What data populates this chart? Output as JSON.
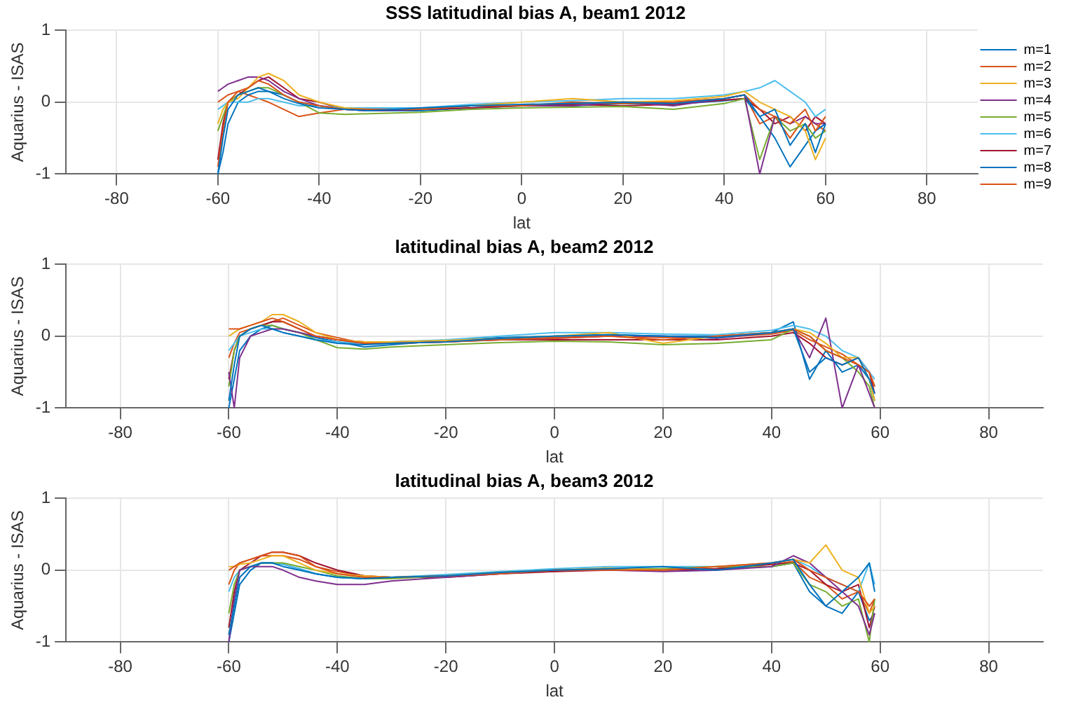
{
  "chart_data": [
    {
      "type": "line",
      "title": "SSS latitudinal bias A, beam1 2012",
      "xlabel": "lat",
      "ylabel": "Aquarius - ISAS",
      "xlim": [
        -90,
        90
      ],
      "xticks": [
        -80,
        -60,
        -40,
        -20,
        0,
        20,
        40,
        60,
        80
      ],
      "ylim": [
        -1,
        1
      ],
      "yticks": [
        -1,
        0,
        1
      ],
      "grid": true,
      "legend": "right",
      "x": [
        -60,
        -59,
        -58,
        -56,
        -54,
        -52,
        -50,
        -47,
        -44,
        -40,
        -35,
        -30,
        -20,
        -10,
        0,
        10,
        20,
        30,
        40,
        44,
        47,
        50,
        53,
        56,
        58,
        60
      ],
      "series": [
        {
          "name": "m=1",
          "color": "#0072bd",
          "values": [
            -1,
            -0.5,
            -0.1,
            0.1,
            0.15,
            0.2,
            0.15,
            0.05,
            -0.02,
            -0.08,
            -0.1,
            -0.12,
            -0.08,
            -0.05,
            -0.03,
            -0.02,
            0,
            -0.02,
            0.05,
            0.1,
            -0.2,
            -0.1,
            -0.6,
            -0.3,
            -0.7,
            -0.3
          ]
        },
        {
          "name": "m=2",
          "color": "#d95319",
          "values": [
            -0.9,
            -0.4,
            0,
            0.15,
            0.2,
            0.3,
            0.25,
            0.1,
            0,
            -0.05,
            -0.1,
            -0.1,
            -0.1,
            -0.05,
            -0.05,
            0,
            -0.02,
            0,
            0.05,
            0.1,
            -0.1,
            -0.2,
            -0.3,
            -0.1,
            -0.4,
            -0.2
          ]
        },
        {
          "name": "m=3",
          "color": "#edb120",
          "values": [
            -0.3,
            -0.1,
            0,
            0.05,
            0.2,
            0.35,
            0.4,
            0.3,
            0.1,
            0,
            -0.08,
            -0.1,
            -0.1,
            -0.05,
            0,
            0.05,
            0,
            0.02,
            0.08,
            0.15,
            0,
            -0.1,
            -0.2,
            -0.4,
            -0.8,
            -0.5
          ]
        },
        {
          "name": "m=4",
          "color": "#7e2f8e",
          "values": [
            0.15,
            0.2,
            0.25,
            0.3,
            0.35,
            0.35,
            0.3,
            0.15,
            0.05,
            -0.05,
            -0.1,
            -0.12,
            -0.1,
            -0.05,
            -0.05,
            -0.05,
            0,
            -0.05,
            0.05,
            0.1,
            -1,
            -0.2,
            -0.3,
            -0.2,
            -0.3,
            -0.3
          ]
        },
        {
          "name": "m=5",
          "color": "#77ac30",
          "values": [
            -0.4,
            -0.2,
            0,
            0.1,
            0.15,
            0.2,
            0.2,
            0.1,
            0,
            -0.15,
            -0.17,
            -0.16,
            -0.14,
            -0.1,
            -0.08,
            -0.07,
            -0.06,
            -0.1,
            -0.02,
            0.05,
            -0.8,
            -0.2,
            -0.4,
            -0.3,
            -0.5,
            -0.4
          ]
        },
        {
          "name": "m=6",
          "color": "#4dbeee",
          "values": [
            -0.1,
            -0.05,
            0,
            0,
            0,
            0.05,
            0.05,
            0,
            -0.05,
            -0.05,
            -0.08,
            -0.08,
            -0.08,
            -0.03,
            0,
            0.02,
            0.05,
            0.05,
            0.1,
            0.15,
            0.2,
            0.3,
            0.15,
            0,
            -0.2,
            -0.1
          ]
        },
        {
          "name": "m=7",
          "color": "#a2142f",
          "values": [
            -0.8,
            -0.3,
            0,
            0.1,
            0.2,
            0.3,
            0.35,
            0.2,
            0.05,
            0,
            -0.1,
            -0.12,
            -0.1,
            -0.08,
            -0.05,
            -0.03,
            -0.05,
            -0.03,
            0.03,
            0.05,
            -0.1,
            -0.3,
            -0.2,
            -0.4,
            -0.2,
            -0.3
          ]
        },
        {
          "name": "m=8",
          "color": "#0072bd",
          "values": [
            -1,
            -0.7,
            -0.3,
            0,
            0.1,
            0.15,
            0.15,
            0.1,
            0,
            -0.05,
            -0.1,
            -0.12,
            -0.12,
            -0.08,
            -0.05,
            -0.05,
            -0.02,
            -0.03,
            0.02,
            0.05,
            -0.2,
            -0.5,
            -0.9,
            -0.6,
            -0.4,
            -0.3
          ]
        },
        {
          "name": "m=9",
          "color": "#d95319",
          "values": [
            0,
            0.05,
            0.1,
            0.15,
            0.1,
            0.05,
            0,
            -0.1,
            -0.2,
            -0.15,
            -0.1,
            -0.1,
            -0.1,
            -0.05,
            -0.05,
            -0.02,
            0,
            0,
            0.05,
            0.1,
            -0.3,
            -0.2,
            -0.5,
            -0.2,
            -0.3,
            -0.4
          ]
        }
      ]
    },
    {
      "type": "line",
      "title": "latitudinal bias A, beam2 2012",
      "xlabel": "lat",
      "ylabel": "Aquarius - ISAS",
      "xlim": [
        -90,
        90
      ],
      "xticks": [
        -80,
        -60,
        -40,
        -20,
        0,
        20,
        40,
        60,
        80
      ],
      "ylim": [
        -1,
        1
      ],
      "yticks": [
        -1,
        0,
        1
      ],
      "grid": true,
      "x": [
        -60,
        -59,
        -58,
        -56,
        -54,
        -52,
        -50,
        -47,
        -44,
        -40,
        -35,
        -30,
        -20,
        -10,
        0,
        10,
        20,
        30,
        40,
        44,
        47,
        50,
        53,
        56,
        58,
        59
      ],
      "series": [
        {
          "color": "#0072bd",
          "values": [
            -0.9,
            -0.4,
            0,
            0.1,
            0.15,
            0.1,
            0.05,
            0,
            -0.05,
            -0.1,
            -0.12,
            -0.1,
            -0.08,
            -0.03,
            0,
            0.02,
            0,
            -0.02,
            0.05,
            0.1,
            -0.5,
            -0.3,
            -0.4,
            -0.3,
            -0.6,
            -0.8
          ]
        },
        {
          "color": "#d95319",
          "values": [
            0.1,
            0.1,
            0.1,
            0.15,
            0.2,
            0.25,
            0.2,
            0.1,
            0,
            -0.05,
            -0.1,
            -0.1,
            -0.08,
            -0.05,
            -0.03,
            0,
            -0.05,
            0,
            0.05,
            0.1,
            0,
            -0.2,
            -0.3,
            -0.4,
            -0.5,
            -0.7
          ]
        },
        {
          "color": "#edb120",
          "values": [
            0,
            0.05,
            0.1,
            0.15,
            0.2,
            0.3,
            0.3,
            0.2,
            0.05,
            -0.05,
            -0.08,
            -0.08,
            -0.06,
            -0.03,
            0,
            0.05,
            -0.1,
            0,
            0.05,
            0.1,
            0.05,
            -0.1,
            -0.3,
            -0.3,
            -0.6,
            -0.9
          ]
        },
        {
          "color": "#7e2f8e",
          "values": [
            -0.5,
            -1,
            -0.3,
            0,
            0.05,
            0.1,
            0.1,
            0.05,
            0,
            -0.05,
            -0.1,
            -0.1,
            -0.08,
            -0.05,
            -0.03,
            0,
            0,
            -0.03,
            0.05,
            0.1,
            -0.3,
            0.25,
            -1,
            -0.4,
            -0.8,
            -1
          ]
        },
        {
          "color": "#77ac30",
          "values": [
            -0.7,
            -0.2,
            0,
            0.1,
            0.15,
            0.15,
            0.1,
            0.05,
            -0.05,
            -0.16,
            -0.18,
            -0.15,
            -0.12,
            -0.09,
            -0.07,
            -0.08,
            -0.12,
            -0.1,
            -0.05,
            0.1,
            0,
            -0.2,
            -0.3,
            -0.5,
            -0.7,
            -1
          ]
        },
        {
          "color": "#4dbeee",
          "values": [
            -0.2,
            -0.1,
            0,
            0.05,
            0.1,
            0.1,
            0.05,
            0,
            -0.05,
            -0.08,
            -0.1,
            -0.08,
            -0.05,
            0,
            0.05,
            0.05,
            0.03,
            0.02,
            0.08,
            0.15,
            0.1,
            0,
            -0.2,
            -0.3,
            -0.5,
            -0.6
          ]
        },
        {
          "color": "#a2142f",
          "values": [
            -0.6,
            -0.2,
            0,
            0.1,
            0.15,
            0.2,
            0.2,
            0.1,
            0,
            -0.05,
            -0.08,
            -0.08,
            -0.06,
            -0.05,
            -0.05,
            -0.05,
            -0.05,
            -0.05,
            0,
            0.05,
            -0.1,
            -0.3,
            -0.4,
            -0.3,
            -0.5,
            -0.8
          ]
        },
        {
          "color": "#0072bd",
          "values": [
            -1,
            -0.6,
            -0.2,
            0,
            0.1,
            0.15,
            0.1,
            0.05,
            -0.02,
            -0.08,
            -0.15,
            -0.12,
            -0.06,
            -0.02,
            0,
            0.02,
            0,
            0,
            0.05,
            0.2,
            -0.6,
            -0.2,
            -0.5,
            -0.4,
            -0.6,
            -0.9
          ]
        },
        {
          "color": "#d95319",
          "values": [
            -0.3,
            -0.1,
            0.05,
            0.1,
            0.15,
            0.2,
            0.25,
            0.15,
            0.05,
            -0.02,
            -0.1,
            -0.1,
            -0.08,
            -0.04,
            -0.02,
            0,
            -0.02,
            -0.02,
            0.03,
            0.08,
            -0.05,
            -0.15,
            -0.25,
            -0.4,
            -0.5,
            -0.7
          ]
        }
      ]
    },
    {
      "type": "line",
      "title": "latitudinal bias A, beam3 2012",
      "xlabel": "lat",
      "ylabel": "Aquarius - ISAS",
      "xlim": [
        -90,
        90
      ],
      "xticks": [
        -80,
        -60,
        -40,
        -20,
        0,
        20,
        40,
        60,
        80
      ],
      "ylim": [
        -1,
        1
      ],
      "yticks": [
        -1,
        0,
        1
      ],
      "grid": true,
      "x": [
        -60,
        -59,
        -58,
        -56,
        -54,
        -52,
        -50,
        -47,
        -44,
        -40,
        -35,
        -30,
        -20,
        -10,
        0,
        10,
        20,
        30,
        40,
        44,
        47,
        50,
        53,
        56,
        58,
        59
      ],
      "series": [
        {
          "color": "#0072bd",
          "values": [
            -0.9,
            -0.5,
            -0.1,
            0.05,
            0.1,
            0.1,
            0.05,
            0,
            -0.05,
            -0.1,
            -0.12,
            -0.1,
            -0.08,
            -0.03,
            0,
            0.02,
            0.05,
            0,
            0.1,
            0.15,
            -0.2,
            -0.5,
            -0.3,
            -0.1,
            0.1,
            -0.3
          ]
        },
        {
          "color": "#d95319",
          "values": [
            0,
            0.05,
            0.1,
            0.15,
            0.2,
            0.25,
            0.25,
            0.2,
            0.05,
            -0.05,
            -0.1,
            -0.1,
            -0.08,
            -0.05,
            0,
            0,
            0,
            0.05,
            0.1,
            0.15,
            0,
            -0.1,
            -0.2,
            -0.3,
            -0.5,
            -0.4
          ]
        },
        {
          "color": "#edb120",
          "values": [
            0.05,
            0.05,
            0.08,
            0.1,
            0.15,
            0.2,
            0.2,
            0.1,
            0,
            -0.05,
            -0.08,
            -0.1,
            -0.08,
            -0.03,
            0,
            0.03,
            0,
            0.05,
            0.1,
            0.15,
            0.1,
            0.35,
            0,
            -0.1,
            -0.6,
            -0.5
          ]
        },
        {
          "color": "#7e2f8e",
          "values": [
            -1,
            -0.4,
            0,
            0.05,
            0.05,
            0.05,
            0,
            -0.1,
            -0.15,
            -0.2,
            -0.2,
            -0.15,
            -0.1,
            -0.05,
            0,
            0,
            -0.02,
            0,
            0.05,
            0.2,
            0.1,
            -0.1,
            -0.3,
            -0.5,
            -0.9,
            -0.6
          ]
        },
        {
          "color": "#77ac30",
          "values": [
            -0.6,
            -0.2,
            0,
            0.05,
            0.1,
            0.1,
            0.1,
            0.05,
            0,
            -0.08,
            -0.12,
            -0.12,
            -0.08,
            -0.04,
            0,
            0.02,
            0.02,
            0.05,
            0.05,
            0.1,
            -0.2,
            -0.3,
            -0.5,
            -0.4,
            -1,
            -0.4
          ]
        },
        {
          "color": "#4dbeee",
          "values": [
            -0.3,
            -0.1,
            0,
            0.05,
            0.1,
            0.1,
            0.08,
            0.02,
            -0.05,
            -0.1,
            -0.12,
            -0.1,
            -0.06,
            -0.02,
            0.02,
            0.05,
            0.05,
            0.05,
            0.1,
            0.15,
            0.05,
            -0.1,
            -0.2,
            -0.3,
            0.1,
            -0.2
          ]
        },
        {
          "color": "#a2142f",
          "values": [
            -0.8,
            -0.3,
            0,
            0.1,
            0.2,
            0.25,
            0.25,
            0.2,
            0.1,
            0,
            -0.08,
            -0.1,
            -0.1,
            -0.05,
            -0.02,
            0,
            0,
            0.02,
            0.08,
            0.1,
            0,
            -0.2,
            -0.3,
            -0.2,
            -0.8,
            -0.5
          ]
        },
        {
          "color": "#0072bd",
          "values": [
            -1,
            -0.6,
            -0.2,
            0,
            0.1,
            0.1,
            0.08,
            0.02,
            -0.05,
            -0.1,
            -0.12,
            -0.1,
            -0.08,
            -0.04,
            0,
            0.02,
            0,
            0.02,
            0.05,
            0.1,
            -0.3,
            -0.5,
            -0.6,
            -0.3,
            -0.7,
            -0.6
          ]
        },
        {
          "color": "#d95319",
          "values": [
            -0.2,
            0,
            0.1,
            0.15,
            0.2,
            0.2,
            0.2,
            0.15,
            0.05,
            -0.02,
            -0.08,
            -0.1,
            -0.08,
            -0.04,
            -0.02,
            0.02,
            0,
            0.02,
            0.08,
            0.12,
            -0.1,
            -0.2,
            -0.4,
            -0.3,
            -0.6,
            -0.4
          ]
        }
      ]
    }
  ]
}
